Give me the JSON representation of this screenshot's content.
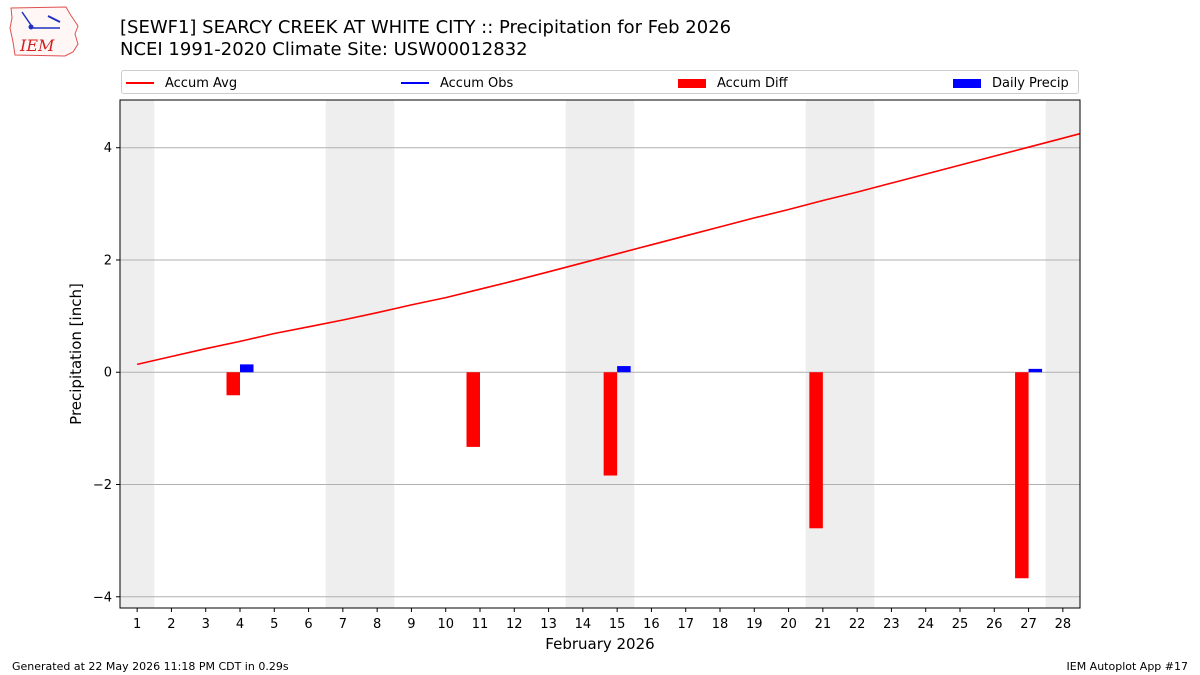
{
  "logo": {
    "text": "IEM"
  },
  "header": {
    "title_line1": "[SEWF1] SEARCY CREEK AT WHITE CITY :: Precipitation for Feb 2026",
    "title_line2": "NCEI 1991-2020 Climate Site: USW00012832"
  },
  "legend": [
    {
      "label": "Accum Avg",
      "kind": "line",
      "color": "#ff0000"
    },
    {
      "label": "Accum Obs",
      "kind": "line",
      "color": "#0000ff"
    },
    {
      "label": "Accum Diff",
      "kind": "bar",
      "color": "#ff0000"
    },
    {
      "label": "Daily Precip",
      "kind": "bar",
      "color": "#0000ff"
    }
  ],
  "footer": {
    "left": "Generated at 22 May 2026 11:18 PM CDT in 0.29s",
    "right": "IEM Autoplot App #17"
  },
  "chart_data": {
    "type": "bar",
    "xlabel": "February 2026",
    "ylabel": "Precipitation [inch]",
    "xlim": [
      0.5,
      28.5
    ],
    "ylim": [
      -4.2,
      4.85
    ],
    "x_ticks": [
      1,
      2,
      3,
      4,
      5,
      6,
      7,
      8,
      9,
      10,
      11,
      12,
      13,
      14,
      15,
      16,
      17,
      18,
      19,
      20,
      21,
      22,
      23,
      24,
      25,
      26,
      27,
      28
    ],
    "y_ticks": [
      -4,
      -2,
      0,
      2,
      4
    ],
    "grid": "horizontal",
    "weekend_shading": [
      [
        0.5,
        1.5
      ],
      [
        6.5,
        8.5
      ],
      [
        13.5,
        15.5
      ],
      [
        20.5,
        22.5
      ],
      [
        27.5,
        28.5
      ]
    ],
    "shading_color": "#eeeeee",
    "series": [
      {
        "name": "Accum Avg",
        "type": "line",
        "color": "#ff0000",
        "x": [
          1,
          2,
          3,
          4,
          5,
          6,
          7,
          8,
          9,
          10,
          11,
          12,
          13,
          14,
          15,
          16,
          17,
          18,
          19,
          20,
          21,
          22,
          23,
          24,
          25,
          26,
          27,
          28,
          28.5
        ],
        "y": [
          0.14,
          0.28,
          0.42,
          0.55,
          0.69,
          0.81,
          0.93,
          1.06,
          1.2,
          1.33,
          1.48,
          1.63,
          1.79,
          1.95,
          2.11,
          2.27,
          2.43,
          2.59,
          2.75,
          2.9,
          3.06,
          3.21,
          3.37,
          3.53,
          3.69,
          3.85,
          4.01,
          4.17,
          4.25
        ]
      },
      {
        "name": "Accum Diff",
        "type": "bar",
        "color": "#ff0000",
        "x": [
          4,
          11,
          15,
          21,
          27
        ],
        "y": [
          -0.41,
          -1.33,
          -1.84,
          -2.78,
          -3.67
        ]
      },
      {
        "name": "Daily Precip",
        "type": "bar",
        "color": "#0000ff",
        "x": [
          4,
          15,
          27
        ],
        "y": [
          0.14,
          0.11,
          0.06
        ]
      }
    ]
  }
}
